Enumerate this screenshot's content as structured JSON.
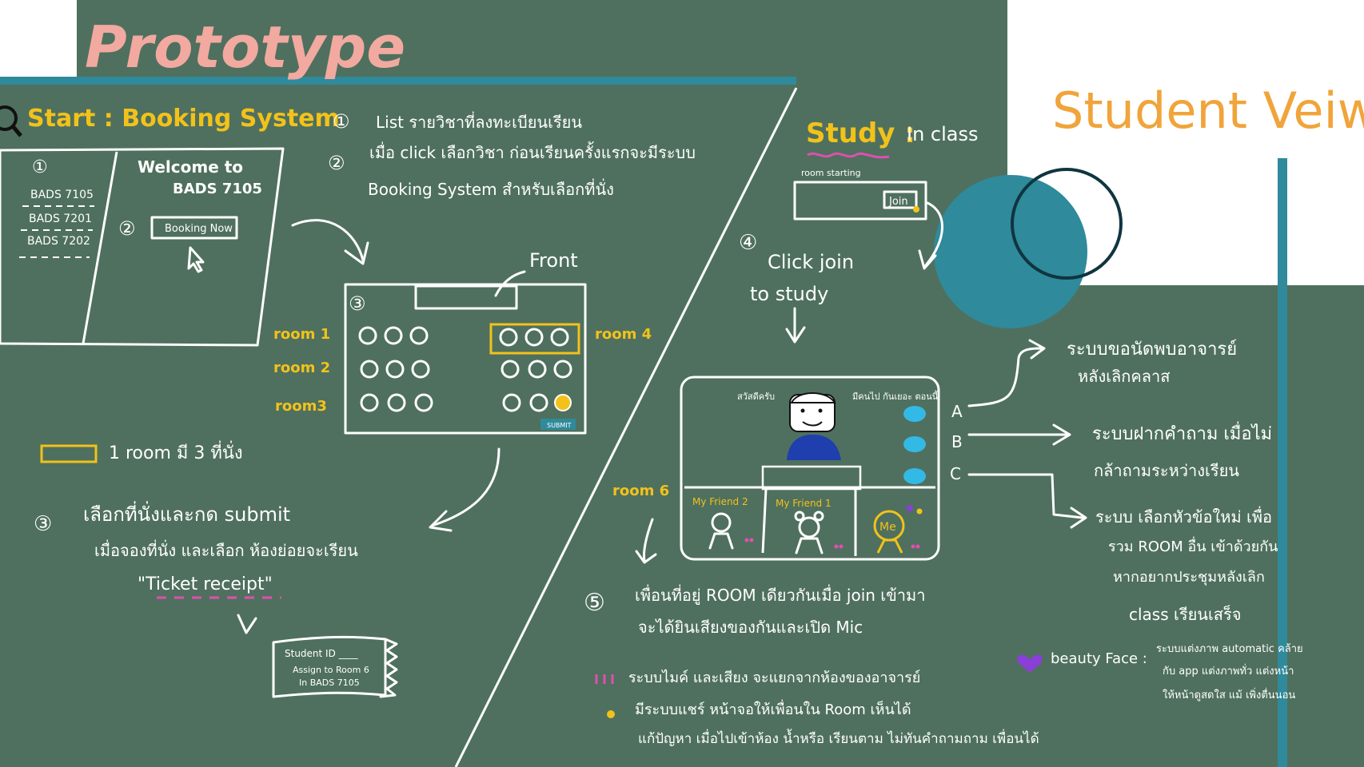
{
  "colors": {
    "board": "#4f705e",
    "teal": "#2f8a9b",
    "white": "#ffffff",
    "yellow": "#f2c21b",
    "pink": "#f2a9a0",
    "orange": "#f0a43a",
    "purple": "#8a3fd6",
    "dark_ring": "#0f3540",
    "magenta": "#e04fb0"
  },
  "header": {
    "title": "Prototype",
    "student_view": "Student Veiw"
  },
  "booking": {
    "heading": "Start :   Booking  System",
    "step1_num": "①",
    "step1_text": "List รายวิชาที่ลงทะเบียนเรียน",
    "step2_num": "②",
    "step2_line1": "เมื่อ click เลือกวิชา ก่อนเรียนครั้งแรกจะมีระบบ",
    "step2_line2": "Booking System  สำหรับเลือกที่นั่ง",
    "screen": {
      "num1": "①",
      "courses": [
        "BADS 7105",
        "BADS 7201",
        "BADS 7202"
      ],
      "welcome_line1": "Welcome to",
      "welcome_line2": "BADS 7105",
      "num2": "②",
      "booking_button": "Booking Now"
    },
    "seat_plan": {
      "num": "③",
      "front_label": "Front",
      "rooms": [
        "room 1",
        "room 2",
        "room3"
      ],
      "room4": "room 4",
      "submit": "SUBMIT"
    },
    "legend_text": "1 room มี 3 ที่นั่ง",
    "step3_num": "③",
    "step3_line1": "เลือกที่นั่งและกด submit",
    "step3_line2": "เมื่อจองที่นั่ง และเลือก ห้องย่อยจะเรียน",
    "ticket_label": "\"Ticket  receipt\"",
    "ticket": {
      "line1": "Student ID ____",
      "line2": "Assign to Room 6",
      "line3": "In BADS 7105"
    }
  },
  "study": {
    "heading": "Study :",
    "subheading": "In class",
    "room_starting": "room starting",
    "join_button": "Join",
    "step4_num": "④",
    "step4_line1": "Click join",
    "step4_line2": "to study",
    "room6": "room 6",
    "teacher_bubble_left": "สวัสดีครับ",
    "teacher_bubble_right": "มีคนไป กันเยอะ ตอนนี้",
    "friends": [
      "My Friend 2",
      "My Friend 1",
      "Me"
    ],
    "abc": [
      "A",
      "B",
      "C"
    ],
    "feature_a_line1": "ระบบขอนัดพบอาจารย์",
    "feature_a_line2": "หลังเลิกคลาส",
    "feature_b_line1": "ระบบฝากคำถาม  เมื่อไม่",
    "feature_b_line2": "กล้าถามระหว่างเรียน",
    "feature_c_line1": "ระบบ เลือกหัวข้อใหม่  เพื่อ",
    "feature_c_line2": "รวม ROOM อื่น เข้าด้วยกัน",
    "feature_c_line3": "หากอยากประชุมหลังเลิก",
    "feature_c_line4": "class เรียนเสร็จ",
    "step5_num": "⑤",
    "step5_line1": "เพื่อนที่อยู่ ROOM เดียวกันเมื่อ join เข้ามา",
    "step5_line2": "จะได้ยินเสียงของกันและเปิด Mic",
    "note_mic": "ระบบไมค์ และเสียง จะแยกจากห้องของอาจารย์",
    "note_share_line1": "มีระบบแชร์ หน้าจอให้เพื่อนใน Room เห็นได้",
    "note_share_line2": "แก้ปัญหา เมื่อไปเข้าห้อง น้ำหรือ เรียนตาม ไม่ทันคำถามถาม เพื่อนได้",
    "beauty_label": "beauty Face :",
    "beauty_line1": "ระบบแต่งภาพ automatic คล้าย",
    "beauty_line2": "กับ app แต่งภาพทั่ว แต่งหน้า",
    "beauty_line3": "ให้หน้าดูสดใส แม้ เพิ่งตื่นนอน"
  }
}
